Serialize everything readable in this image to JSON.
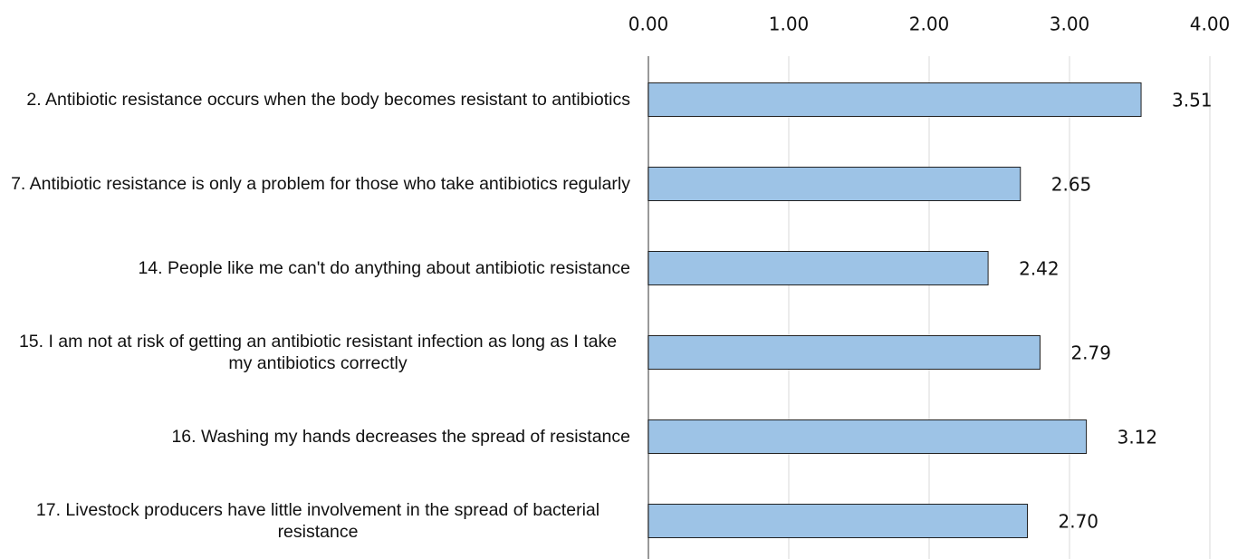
{
  "chart_data": {
    "type": "bar",
    "orientation": "horizontal",
    "categories": [
      "2. Antibiotic resistance occurs when the body becomes resistant to antibiotics",
      "7. Antibiotic resistance is only a problem for those who take antibiotics regularly",
      "14. People like me can't do anything about antibiotic resistance",
      "15. I am not at risk of getting an antibiotic resistant infection as long as I take my antibiotics correctly",
      "16. Washing my hands decreases the spread of resistance",
      "17. Livestock producers have little involvement in the spread of bacterial resistance"
    ],
    "values": [
      3.51,
      2.65,
      2.42,
      2.79,
      3.12,
      2.7
    ],
    "value_labels": [
      "3.51",
      "2.65",
      "2.42",
      "2.79",
      "3.12",
      "2.70"
    ],
    "color": "#9dc3e6",
    "xlim": [
      0,
      4
    ],
    "xticks": [
      {
        "value": 0,
        "label": "0.00"
      },
      {
        "value": 1,
        "label": "1.00"
      },
      {
        "value": 2,
        "label": "2.00"
      },
      {
        "value": 3,
        "label": "3.00"
      },
      {
        "value": 4,
        "label": "4.00"
      }
    ],
    "grid": true
  }
}
